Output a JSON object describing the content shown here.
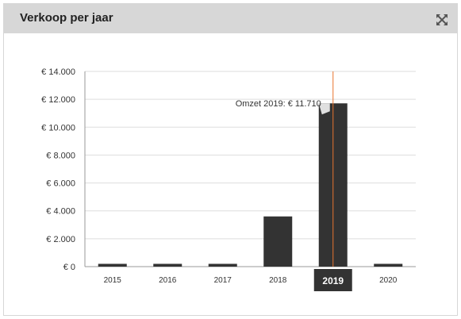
{
  "panel": {
    "title": "Verkoop per jaar",
    "expand_icon": "expand-arrows-icon"
  },
  "colors": {
    "header_bg": "#d7d7d7",
    "bar": "#333333",
    "grid": "#dddddd",
    "crosshair": "#e8742e",
    "highlight_label_bg": "#333333"
  },
  "chart_data": {
    "type": "bar",
    "categories": [
      "2015",
      "2016",
      "2017",
      "2018",
      "2019",
      "2020"
    ],
    "values": [
      200,
      200,
      200,
      3600,
      11710,
      200
    ],
    "y_tick_labels": [
      "€ 0",
      "€ 2.000",
      "€ 4.000",
      "€ 6.000",
      "€ 8.000",
      "€ 10.000",
      "€ 12.000",
      "€ 14.000"
    ],
    "ylim": [
      0,
      14000
    ],
    "grid": true,
    "highlighted_category": "2019",
    "tooltip": "Omzet 2019: € 11.710"
  }
}
